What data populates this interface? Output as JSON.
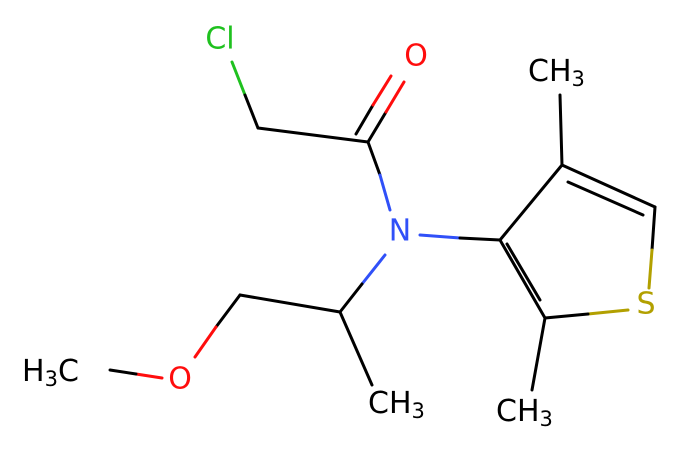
{
  "atoms": {
    "chlorine": "Cl",
    "carbonyl_oxygen": "O",
    "nitrogen": "N",
    "sulfur": "S",
    "ether_oxygen": "O",
    "methyl_ring_top": {
      "main": "CH",
      "sub": "3"
    },
    "methyl_ring_bottom": {
      "main": "CH",
      "sub": "3"
    },
    "methyl_chain": {
      "main": "CH",
      "sub": "3"
    },
    "methoxy_methyl": {
      "main": "H",
      "sub": "3",
      "tail": "C"
    }
  }
}
